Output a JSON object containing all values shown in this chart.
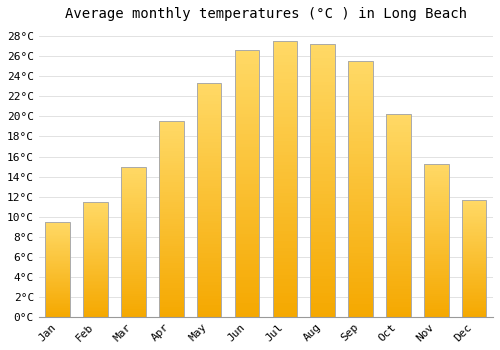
{
  "title": "Average monthly temperatures (°C ) in Long Beach",
  "months": [
    "Jan",
    "Feb",
    "Mar",
    "Apr",
    "May",
    "Jun",
    "Jul",
    "Aug",
    "Sep",
    "Oct",
    "Nov",
    "Dec"
  ],
  "temperatures": [
    9.5,
    11.5,
    15.0,
    19.5,
    23.3,
    26.6,
    27.5,
    27.2,
    25.5,
    20.2,
    15.3,
    11.7
  ],
  "bar_color_bottom": "#F5A800",
  "bar_color_top": "#FFD966",
  "bar_edge_color": "#AAAAAA",
  "background_color": "#FFFFFF",
  "grid_color": "#DDDDDD",
  "ylim": [
    0,
    29
  ],
  "yticks": [
    0,
    2,
    4,
    6,
    8,
    10,
    12,
    14,
    16,
    18,
    20,
    22,
    24,
    26,
    28
  ],
  "ytick_labels": [
    "0°C",
    "2°C",
    "4°C",
    "6°C",
    "8°C",
    "10°C",
    "12°C",
    "14°C",
    "16°C",
    "18°C",
    "20°C",
    "22°C",
    "24°C",
    "26°C",
    "28°C"
  ],
  "title_fontsize": 10,
  "tick_fontsize": 8,
  "font_family": "monospace",
  "bar_width": 0.65
}
